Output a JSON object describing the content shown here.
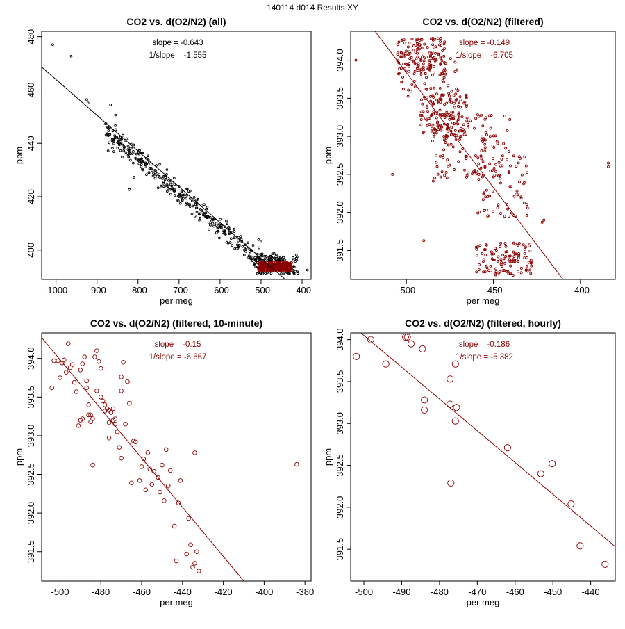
{
  "page": {
    "title": "140114   d014   Results XY"
  },
  "colors": {
    "black": "#000000",
    "red": "#8b0000"
  },
  "chart_data": [
    {
      "id": "all",
      "type": "scatter",
      "title": "CO2 vs. d(O2/N2) (all)",
      "xlabel": "per meg",
      "ylabel": "ppm",
      "xlim": [
        -1035,
        -378
      ],
      "ylim": [
        389,
        482
      ],
      "xticks": [
        -1000,
        -900,
        -800,
        -700,
        -600,
        -500,
        -400
      ],
      "yticks": [
        400,
        420,
        440,
        460,
        480
      ],
      "annotation": {
        "slope_text": "slope = -0.643",
        "inv_slope_text": "1/slope = -1.555"
      },
      "annotation_color": "#000000",
      "fit_line": {
        "color": "#000000",
        "points": [
          [
            -1035,
            468.6
          ],
          [
            -441,
            389
          ]
        ]
      },
      "series": [
        {
          "name": "all",
          "color": "#000000",
          "marker": "o",
          "marker_radius": 1.4,
          "clusters": [
            {
              "type": "line",
              "x_range": [
                -880,
                -500
              ],
              "slope": -0.1305,
              "intercept": 330.1,
              "spread": 2.5,
              "n": 340
            },
            {
              "type": "cluster",
              "x_range": [
                -510,
                -410
              ],
              "y_range": [
                391,
                399
              ],
              "n": 150
            }
          ],
          "points": [
            [
              -1008,
              477
            ],
            [
              -963,
              472.7
            ],
            [
              -925,
              456.4
            ],
            [
              -922,
              455.1
            ],
            [
              -867,
              454.4
            ],
            [
              -855,
              450.6
            ],
            [
              -873,
              437.2
            ],
            [
              -859,
              436.9
            ],
            [
              -819,
              436.1
            ],
            [
              -821,
              422.7
            ],
            [
              -810,
              427.3
            ],
            [
              -602,
              409.6
            ],
            [
              -579,
              408.6
            ],
            [
              -580,
              402.6
            ],
            [
              -506,
              403.9
            ],
            [
              -500,
              403.0
            ],
            [
              -387,
              392.5
            ]
          ]
        },
        {
          "name": "filtered",
          "color": "#8b0000",
          "marker": "o",
          "marker_radius": 1.5,
          "clusters": [
            {
              "type": "cluster",
              "x_range": [
                -505,
                -425
              ],
              "y_range": [
                392,
                395.4
              ],
              "n": 300
            }
          ],
          "points": []
        }
      ]
    },
    {
      "id": "filtered",
      "type": "scatter",
      "title": "CO2 vs. d(O2/N2) (filtered)",
      "xlabel": "per meg",
      "ylabel": "ppm",
      "xlim": [
        -532,
        -380
      ],
      "ylim": [
        391.12,
        394.38
      ],
      "xticks": [
        -500,
        -450,
        -400
      ],
      "yticks": [
        391.5,
        392.0,
        392.5,
        393.0,
        393.5,
        394.0
      ],
      "annotation": {
        "slope_text": "slope = -0.149",
        "inv_slope_text": "1/slope = -6.705"
      },
      "annotation_color": "#8b0000",
      "fit_line": {
        "color": "#8b0000",
        "points": [
          [
            -518,
            394.38
          ],
          [
            -410,
            391.12
          ]
        ]
      },
      "series": [
        {
          "name": "filtered",
          "color": "#8b0000",
          "marker": "o",
          "marker_radius": 1.5,
          "clusters": [
            {
              "type": "cluster",
              "x_range": [
                -506,
                -478
              ],
              "y_range": [
                393.8,
                394.3
              ],
              "n": 130
            },
            {
              "type": "cluster",
              "x_range": [
                -492,
                -465
              ],
              "y_range": [
                393.0,
                393.55
              ],
              "n": 150
            },
            {
              "type": "cluster",
              "x_range": [
                -503,
                -470
              ],
              "y_range": [
                393.5,
                394.1
              ],
              "n": 60
            },
            {
              "type": "cluster",
              "x_range": [
                -485,
                -440
              ],
              "y_range": [
                392.4,
                393.3
              ],
              "n": 110
            },
            {
              "type": "cluster",
              "x_range": [
                -462,
                -430
              ],
              "y_range": [
                391.95,
                392.75
              ],
              "n": 70
            },
            {
              "type": "cluster",
              "x_range": [
                -460,
                -428
              ],
              "y_range": [
                391.17,
                391.6
              ],
              "n": 110
            }
          ],
          "points": [
            [
              -529,
              394.0
            ],
            [
              -508,
              392.5
            ],
            [
              -490,
              391.63
            ],
            [
              -384,
              392.65
            ],
            [
              -384,
              392.6
            ],
            [
              -421,
              391.9
            ],
            [
              -422,
              391.87
            ]
          ]
        }
      ]
    },
    {
      "id": "10min",
      "type": "scatter",
      "title": "CO2 vs. d(O2/N2) (filtered, 10-minute)",
      "xlabel": "per meg",
      "ylabel": "ppm",
      "xlim": [
        -509,
        -377
      ],
      "ylim": [
        391.12,
        394.33
      ],
      "xticks": [
        -500,
        -480,
        -460,
        -440,
        -420,
        -400,
        -380
      ],
      "yticks": [
        391.5,
        392.0,
        392.5,
        393.0,
        393.5,
        394.0
      ],
      "annotation": {
        "slope_text": "slope = -0.15",
        "inv_slope_text": "1/slope = -6.667"
      },
      "annotation_color": "#8b0000",
      "fit_line": {
        "color": "#8b0000",
        "points": [
          [
            -509,
            394.27
          ],
          [
            -410,
            391.12
          ]
        ]
      },
      "series": [
        {
          "name": "10-minute",
          "color": "#8b0000",
          "marker": "o",
          "marker_radius": 2.8,
          "clusters": [],
          "points": [
            [
              -503,
              393.97
            ],
            [
              -504,
              393.62
            ],
            [
              -499,
              393.94
            ],
            [
              -498,
              393.98
            ],
            [
              -497,
              393.82
            ],
            [
              -496,
              394.19
            ],
            [
              -494,
              393.92
            ],
            [
              -493,
              393.69
            ],
            [
              -501,
              393.97
            ],
            [
              -500,
              393.75
            ],
            [
              -492,
              393.57
            ],
            [
              -491,
              393.13
            ],
            [
              -490,
              393.85
            ],
            [
              -489,
              393.93
            ],
            [
              -488,
              394.02
            ],
            [
              -487,
              393.71
            ],
            [
              -486,
              393.4
            ],
            [
              -486,
              393.27
            ],
            [
              -485,
              393.27
            ],
            [
              -485,
              393.18
            ],
            [
              -484,
              393.22
            ],
            [
              -483,
              394.02
            ],
            [
              -482,
              394.1
            ],
            [
              -481,
              393.96
            ],
            [
              -480,
              393.87
            ],
            [
              -480,
              393.5
            ],
            [
              -479,
              393.45
            ],
            [
              -478,
              393.4
            ],
            [
              -477,
              393.35
            ],
            [
              -476,
              393.33
            ],
            [
              -476,
              393.17
            ],
            [
              -475,
              393.3
            ],
            [
              -474,
              393.2
            ],
            [
              -473,
              393.15
            ],
            [
              -472,
              393.05
            ],
            [
              -471,
              392.85
            ],
            [
              -470,
              393.76
            ],
            [
              -470,
              393.58
            ],
            [
              -469,
              393.95
            ],
            [
              -468,
              393.15
            ],
            [
              -466,
              393.42
            ],
            [
              -489,
              393.22
            ],
            [
              -490,
              393.2
            ],
            [
              -484,
              392.62
            ],
            [
              -478,
              393.32
            ],
            [
              -476,
              392.97
            ],
            [
              -473,
              393.22
            ],
            [
              -464,
              392.93
            ],
            [
              -463,
              392.92
            ],
            [
              -460,
              392.6
            ],
            [
              -459,
              392.7
            ],
            [
              -458,
              392.3
            ],
            [
              -457,
              392.78
            ],
            [
              -456,
              392.57
            ],
            [
              -455,
              392.37
            ],
            [
              -454,
              392.54
            ],
            [
              -452,
              392.46
            ],
            [
              -451,
              392.27
            ],
            [
              -450,
              392.62
            ],
            [
              -449,
              392.16
            ],
            [
              -447,
              392.35
            ],
            [
              -446,
              392.55
            ],
            [
              -448,
              392.82
            ],
            [
              -444,
              391.83
            ],
            [
              -442,
              392.13
            ],
            [
              -441,
              392.42
            ],
            [
              -437,
              391.93
            ],
            [
              -434,
              392.78
            ],
            [
              -433,
              391.5
            ],
            [
              -434,
              391.35
            ],
            [
              -438,
              391.47
            ],
            [
              -436,
              391.59
            ],
            [
              -443,
              391.38
            ],
            [
              -435,
              391.3
            ],
            [
              -432,
              391.25
            ],
            [
              -384,
              392.63
            ],
            [
              -470,
              392.71
            ],
            [
              -465,
              392.39
            ],
            [
              -461,
              392.42
            ],
            [
              -467,
              393.7
            ],
            [
              -474,
              393.35
            ],
            [
              -482,
              393.58
            ],
            [
              -487,
              393.62
            ],
            [
              -495,
              393.88
            ]
          ]
        }
      ]
    },
    {
      "id": "hourly",
      "type": "scatter",
      "title": "CO2 vs. d(O2/N2) (filtered, hourly)",
      "xlabel": "per meg",
      "ylabel": "ppm",
      "xlim": [
        -503.5,
        -433.5
      ],
      "ylim": [
        391.12,
        394.08
      ],
      "xticks": [
        -500,
        -490,
        -480,
        -470,
        -460,
        -450,
        -440
      ],
      "yticks": [
        391.5,
        392.0,
        392.5,
        393.0,
        393.5,
        394.0
      ],
      "annotation": {
        "slope_text": "slope = -0.186",
        "inv_slope_text": "1/slope = -5.382"
      },
      "annotation_color": "#8b0000",
      "fit_line": {
        "color": "#8b0000",
        "points": [
          [
            -500.8,
            394.08
          ],
          [
            -433.5,
            391.53
          ]
        ]
      },
      "series": [
        {
          "name": "hourly",
          "color": "#8b0000",
          "marker": "o",
          "marker_radius": 4.6,
          "clusters": [],
          "points": [
            [
              -502,
              393.8
            ],
            [
              -498.2,
              394.0
            ],
            [
              -494.2,
              393.71
            ],
            [
              -489,
              394.03
            ],
            [
              -488.5,
              394.03
            ],
            [
              -487.5,
              393.95
            ],
            [
              -484.5,
              393.89
            ],
            [
              -484,
              393.28
            ],
            [
              -484,
              393.16
            ],
            [
              -477.2,
              393.53
            ],
            [
              -477.2,
              393.23
            ],
            [
              -475.8,
              393.71
            ],
            [
              -475.5,
              393.19
            ],
            [
              -475.8,
              393.03
            ],
            [
              -477,
              392.29
            ],
            [
              -462,
              392.71
            ],
            [
              -453.2,
              392.4
            ],
            [
              -450.2,
              392.52
            ],
            [
              -445.2,
              392.04
            ],
            [
              -442.8,
              391.54
            ],
            [
              -436.2,
              391.32
            ]
          ]
        }
      ]
    }
  ]
}
